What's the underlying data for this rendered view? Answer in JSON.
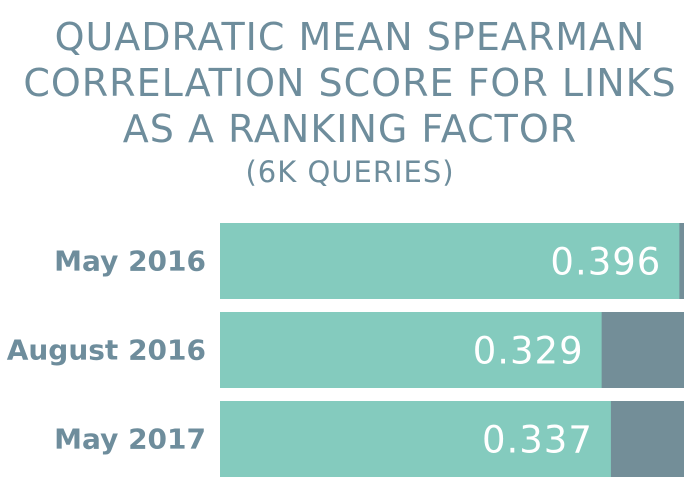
{
  "chart_data": {
    "type": "bar",
    "orientation": "horizontal",
    "title_lines": [
      "QUADRATIC MEAN SPEARMAN",
      "CORRELATION SCORE FOR LINKS",
      "AS A RANKING FACTOR"
    ],
    "subtitle": "(6K QUERIES)",
    "categories": [
      "May 2016",
      "August 2016",
      "May 2017"
    ],
    "values": [
      0.396,
      0.329,
      0.337
    ],
    "value_labels": [
      "0.396",
      "0.329",
      "0.337"
    ],
    "xlim": [
      0,
      0.4
    ],
    "grid": false,
    "legend": "none"
  },
  "colors": {
    "bar_fill": "#84cbbe",
    "track_fill": "#738e98",
    "text": "#6e8d9c",
    "value_text": "#ffffff"
  }
}
